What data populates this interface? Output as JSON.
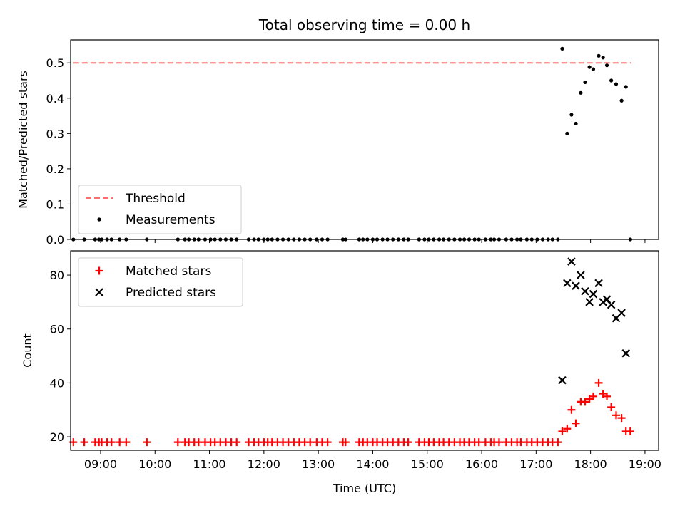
{
  "chart_data": [
    {
      "type": "scatter",
      "title": "Total observing time = 0.00 h",
      "xlabel": "",
      "ylabel": "Matched/Predicted stars",
      "xlim": [
        8.45,
        19.25
      ],
      "ylim": [
        0,
        0.565
      ],
      "yticks": [
        "0.0",
        "0.1",
        "0.2",
        "0.3",
        "0.4",
        "0.5"
      ],
      "legend_position": "lower-left",
      "series": [
        {
          "name": "Threshold",
          "kind": "dashed-line",
          "color": "#ff6e6e",
          "x": [
            8.5,
            18.75
          ],
          "y": [
            0.5,
            0.5
          ]
        },
        {
          "name": "Measurements",
          "kind": "points",
          "color": "#000000",
          "x": [
            8.5,
            8.7,
            8.9,
            8.97,
            9.02,
            9.12,
            9.2,
            9.35,
            9.47,
            9.85,
            10.42,
            10.55,
            10.62,
            10.72,
            10.8,
            10.92,
            11.02,
            11.1,
            11.2,
            11.3,
            11.4,
            11.5,
            11.72,
            11.82,
            11.9,
            12.0,
            12.07,
            12.15,
            12.25,
            12.35,
            12.45,
            12.55,
            12.65,
            12.75,
            12.85,
            12.97,
            13.07,
            13.17,
            13.45,
            13.5,
            13.75,
            13.82,
            13.9,
            14.0,
            14.08,
            14.18,
            14.27,
            14.37,
            14.47,
            14.57,
            14.65,
            14.85,
            14.95,
            15.03,
            15.12,
            15.22,
            15.3,
            15.4,
            15.5,
            15.6,
            15.68,
            15.77,
            15.87,
            15.95,
            16.07,
            16.17,
            16.23,
            16.32,
            16.45,
            16.55,
            16.65,
            16.72,
            16.83,
            16.92,
            17.02,
            17.12,
            17.22,
            17.3,
            17.4,
            17.48,
            17.57,
            17.65,
            17.73,
            17.82,
            17.9,
            17.98,
            18.05,
            18.15,
            18.23,
            18.3,
            18.38,
            18.47,
            18.57,
            18.65,
            18.73
          ],
          "y": [
            0,
            0,
            0,
            0,
            0,
            0,
            0,
            0,
            0,
            0,
            0,
            0,
            0,
            0,
            0,
            0,
            0,
            0,
            0,
            0,
            0,
            0,
            0,
            0,
            0,
            0,
            0,
            0,
            0,
            0,
            0,
            0,
            0,
            0,
            0,
            0,
            0,
            0,
            0,
            0,
            0,
            0,
            0,
            0,
            0,
            0,
            0,
            0,
            0,
            0,
            0,
            0,
            0,
            0,
            0,
            0,
            0,
            0,
            0,
            0,
            0,
            0,
            0,
            0,
            0,
            0,
            0,
            0,
            0,
            0,
            0,
            0,
            0,
            0,
            0,
            0,
            0,
            0,
            0,
            0.54,
            0.3,
            0.353,
            0.328,
            0.415,
            0.445,
            0.488,
            0.482,
            0.52,
            0.515,
            0.493,
            0.45,
            0.44,
            0.393,
            0.432,
            0
          ]
        }
      ]
    },
    {
      "type": "scatter",
      "title": "",
      "xlabel": "Time (UTC)",
      "ylabel": "Count",
      "xlim": [
        8.45,
        19.25
      ],
      "ylim": [
        15,
        89
      ],
      "xticks": [
        {
          "v": 9,
          "label": "09:00"
        },
        {
          "v": 10,
          "label": "10:00"
        },
        {
          "v": 11,
          "label": "11:00"
        },
        {
          "v": 12,
          "label": "12:00"
        },
        {
          "v": 13,
          "label": "13:00"
        },
        {
          "v": 14,
          "label": "14:00"
        },
        {
          "v": 15,
          "label": "15:00"
        },
        {
          "v": 16,
          "label": "16:00"
        },
        {
          "v": 17,
          "label": "17:00"
        },
        {
          "v": 18,
          "label": "18:00"
        },
        {
          "v": 19,
          "label": "19:00"
        }
      ],
      "yticks": [
        "20",
        "40",
        "60",
        "80"
      ],
      "legend_position": "top-left",
      "series": [
        {
          "name": "Matched stars",
          "kind": "plus",
          "color": "#ff0000",
          "x": [
            8.5,
            8.7,
            8.9,
            8.97,
            9.02,
            9.12,
            9.2,
            9.35,
            9.47,
            9.85,
            10.42,
            10.55,
            10.62,
            10.72,
            10.8,
            10.92,
            11.02,
            11.1,
            11.2,
            11.3,
            11.4,
            11.5,
            11.72,
            11.82,
            11.9,
            12.0,
            12.07,
            12.15,
            12.25,
            12.35,
            12.45,
            12.55,
            12.65,
            12.75,
            12.85,
            12.97,
            13.07,
            13.17,
            13.45,
            13.5,
            13.75,
            13.82,
            13.9,
            14.0,
            14.08,
            14.18,
            14.27,
            14.37,
            14.47,
            14.57,
            14.65,
            14.85,
            14.95,
            15.03,
            15.12,
            15.22,
            15.3,
            15.4,
            15.5,
            15.6,
            15.68,
            15.77,
            15.87,
            15.95,
            16.07,
            16.17,
            16.23,
            16.32,
            16.45,
            16.55,
            16.65,
            16.72,
            16.83,
            16.92,
            17.02,
            17.12,
            17.22,
            17.3,
            17.4,
            17.48,
            17.57,
            17.65,
            17.73,
            17.82,
            17.9,
            17.98,
            18.05,
            18.15,
            18.23,
            18.3,
            18.38,
            18.47,
            18.57,
            18.65,
            18.73
          ],
          "y": [
            18,
            18,
            18,
            18,
            18,
            18,
            18,
            18,
            18,
            18,
            18,
            18,
            18,
            18,
            18,
            18,
            18,
            18,
            18,
            18,
            18,
            18,
            18,
            18,
            18,
            18,
            18,
            18,
            18,
            18,
            18,
            18,
            18,
            18,
            18,
            18,
            18,
            18,
            18,
            18,
            18,
            18,
            18,
            18,
            18,
            18,
            18,
            18,
            18,
            18,
            18,
            18,
            18,
            18,
            18,
            18,
            18,
            18,
            18,
            18,
            18,
            18,
            18,
            18,
            18,
            18,
            18,
            18,
            18,
            18,
            18,
            18,
            18,
            18,
            18,
            18,
            18,
            18,
            18,
            22,
            23,
            30,
            25,
            33,
            33,
            34,
            35,
            40,
            36,
            35,
            31,
            28,
            27,
            22,
            22
          ]
        },
        {
          "name": "Predicted stars",
          "kind": "x",
          "color": "#000000",
          "x": [
            17.48,
            17.57,
            17.65,
            17.73,
            17.82,
            17.9,
            17.98,
            18.05,
            18.15,
            18.23,
            18.3,
            18.38,
            18.47,
            18.57,
            18.65
          ],
          "y": [
            41,
            77,
            85,
            76,
            80,
            74,
            70,
            73,
            77,
            70,
            71,
            69,
            64,
            66,
            51
          ]
        }
      ]
    }
  ]
}
